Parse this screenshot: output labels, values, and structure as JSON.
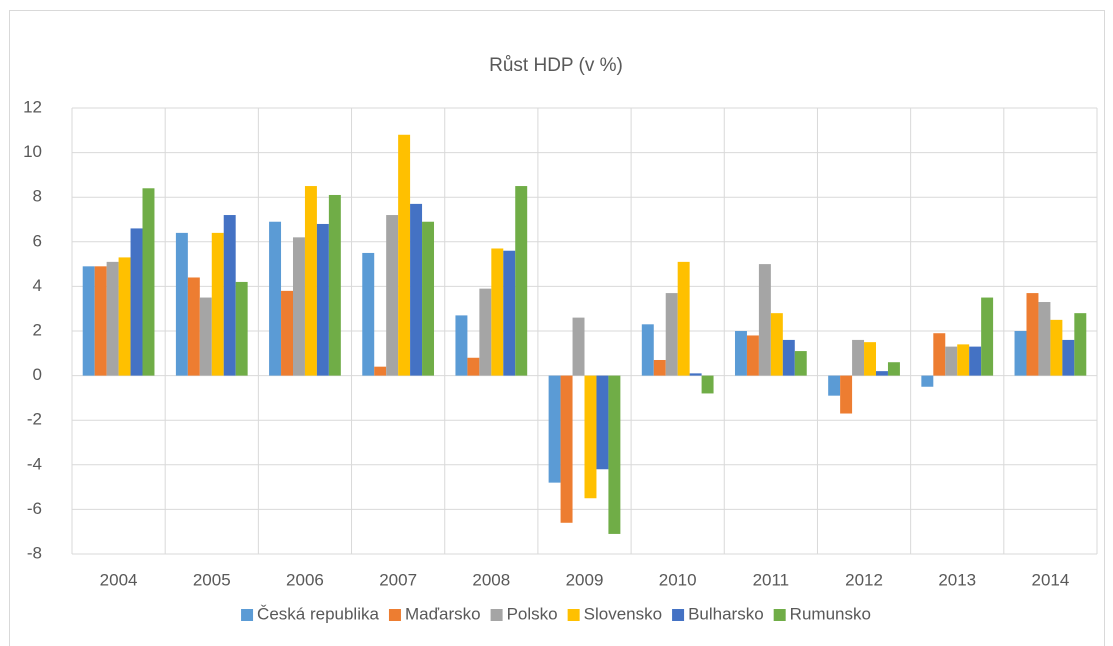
{
  "chart_data": {
    "type": "bar",
    "title": "Růst HDP (v %)",
    "categories": [
      "2004",
      "2005",
      "2006",
      "2007",
      "2008",
      "2009",
      "2010",
      "2011",
      "2012",
      "2013",
      "2014"
    ],
    "series": [
      {
        "name": "Česká republika",
        "color": "#5b9bd5",
        "values": [
          4.9,
          6.4,
          6.9,
          5.5,
          2.7,
          -4.8,
          2.3,
          2.0,
          -0.9,
          -0.5,
          2.0
        ]
      },
      {
        "name": "Maďarsko",
        "color": "#ed7d31",
        "values": [
          4.9,
          4.4,
          3.8,
          0.4,
          0.8,
          -6.6,
          0.7,
          1.8,
          -1.7,
          1.9,
          3.7
        ]
      },
      {
        "name": "Polsko",
        "color": "#a5a5a5",
        "values": [
          5.1,
          3.5,
          6.2,
          7.2,
          3.9,
          2.6,
          3.7,
          5.0,
          1.6,
          1.3,
          3.3
        ]
      },
      {
        "name": "Slovensko",
        "color": "#ffc000",
        "values": [
          5.3,
          6.4,
          8.5,
          10.8,
          5.7,
          -5.5,
          5.1,
          2.8,
          1.5,
          1.4,
          2.5
        ]
      },
      {
        "name": "Bulharsko",
        "color": "#4472c4",
        "values": [
          6.6,
          7.2,
          6.8,
          7.7,
          5.6,
          -4.2,
          0.1,
          1.6,
          0.2,
          1.3,
          1.6
        ]
      },
      {
        "name": "Rumunsko",
        "color": "#70ad47",
        "values": [
          8.4,
          4.2,
          8.1,
          6.9,
          8.5,
          -7.1,
          -0.8,
          1.1,
          0.6,
          3.5,
          2.8
        ]
      }
    ],
    "ylim": [
      -8,
      12
    ],
    "yticks": [
      -8,
      -6,
      -4,
      -2,
      0,
      2,
      4,
      6,
      8,
      10,
      12
    ],
    "grid": true,
    "legend": "bottom"
  }
}
